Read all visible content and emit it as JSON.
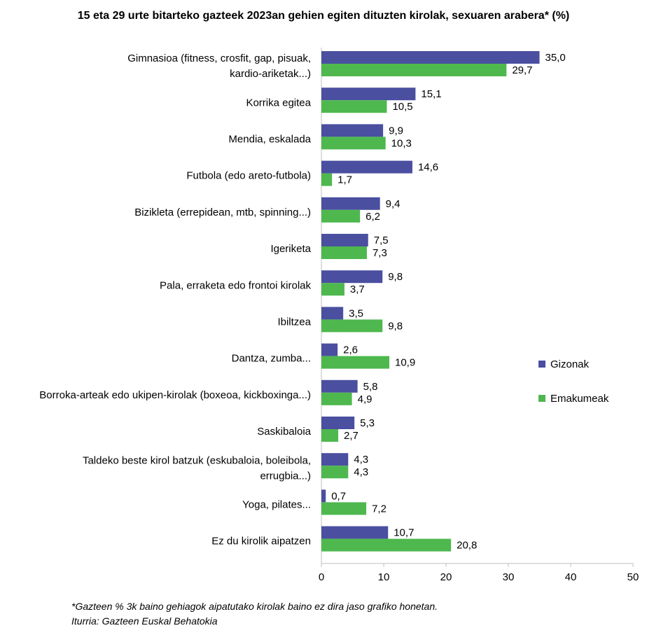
{
  "chart_data": {
    "type": "bar",
    "orientation": "horizontal",
    "title": "15 eta 29 urte bitarteko gazteek 2023an gehien egiten dituzten kirolak, sexuaren arabera* (%)",
    "categories": [
      "Gimnasioa (fitness, crosfit, gap, pisuak, kardio-ariketak...)",
      "Korrika egitea",
      "Mendia, eskalada",
      "Futbola (edo areto-futbola)",
      "Bizikleta (errepidean, mtb, spinning...)",
      "Igeriketa",
      "Pala, erraketa edo frontoi kirolak",
      "Ibiltzea",
      "Dantza, zumba...",
      "Borroka-arteak edo ukipen-kirolak (boxeoa, kickboxinga...)",
      "Saskibaloia",
      "Taldeko beste kirol batzuk (eskubaloia, boleibola, errugbia...)",
      "Yoga, pilates...",
      "Ez du kirolik aipatzen"
    ],
    "series": [
      {
        "name": "Gizonak",
        "color": "#4a4fa0",
        "values": [
          35.0,
          15.1,
          9.9,
          14.6,
          9.4,
          7.5,
          9.8,
          3.5,
          2.6,
          5.8,
          5.3,
          4.3,
          0.7,
          10.7
        ],
        "labels": [
          "35,0",
          "15,1",
          "9,9",
          "14,6",
          "9,4",
          "7,5",
          "9,8",
          "3,5",
          "2,6",
          "5,8",
          "5,3",
          "4,3",
          "0,7",
          "10,7"
        ]
      },
      {
        "name": "Emakumeak",
        "color": "#4eb84e",
        "values": [
          29.7,
          10.5,
          10.3,
          1.7,
          6.2,
          7.3,
          3.7,
          9.8,
          10.9,
          4.9,
          2.7,
          4.3,
          7.2,
          20.8
        ],
        "labels": [
          "29,7",
          "10,5",
          "10,3",
          "1,7",
          "6,2",
          "7,3",
          "3,7",
          "9,8",
          "10,9",
          "4,9",
          "2,7",
          "4,3",
          "7,2",
          "20,8"
        ]
      }
    ],
    "xlim": [
      0,
      50
    ],
    "xticks": [
      "0",
      "10",
      "20",
      "30",
      "40",
      "50"
    ],
    "legend_position": "right",
    "grid": false
  },
  "footnotes": {
    "note": "*Gazteen % 3k baino gehiagok aipatutako kirolak baino ez dira jaso grafiko honetan.",
    "source": "Iturria: Gazteen Euskal Behatokia"
  }
}
